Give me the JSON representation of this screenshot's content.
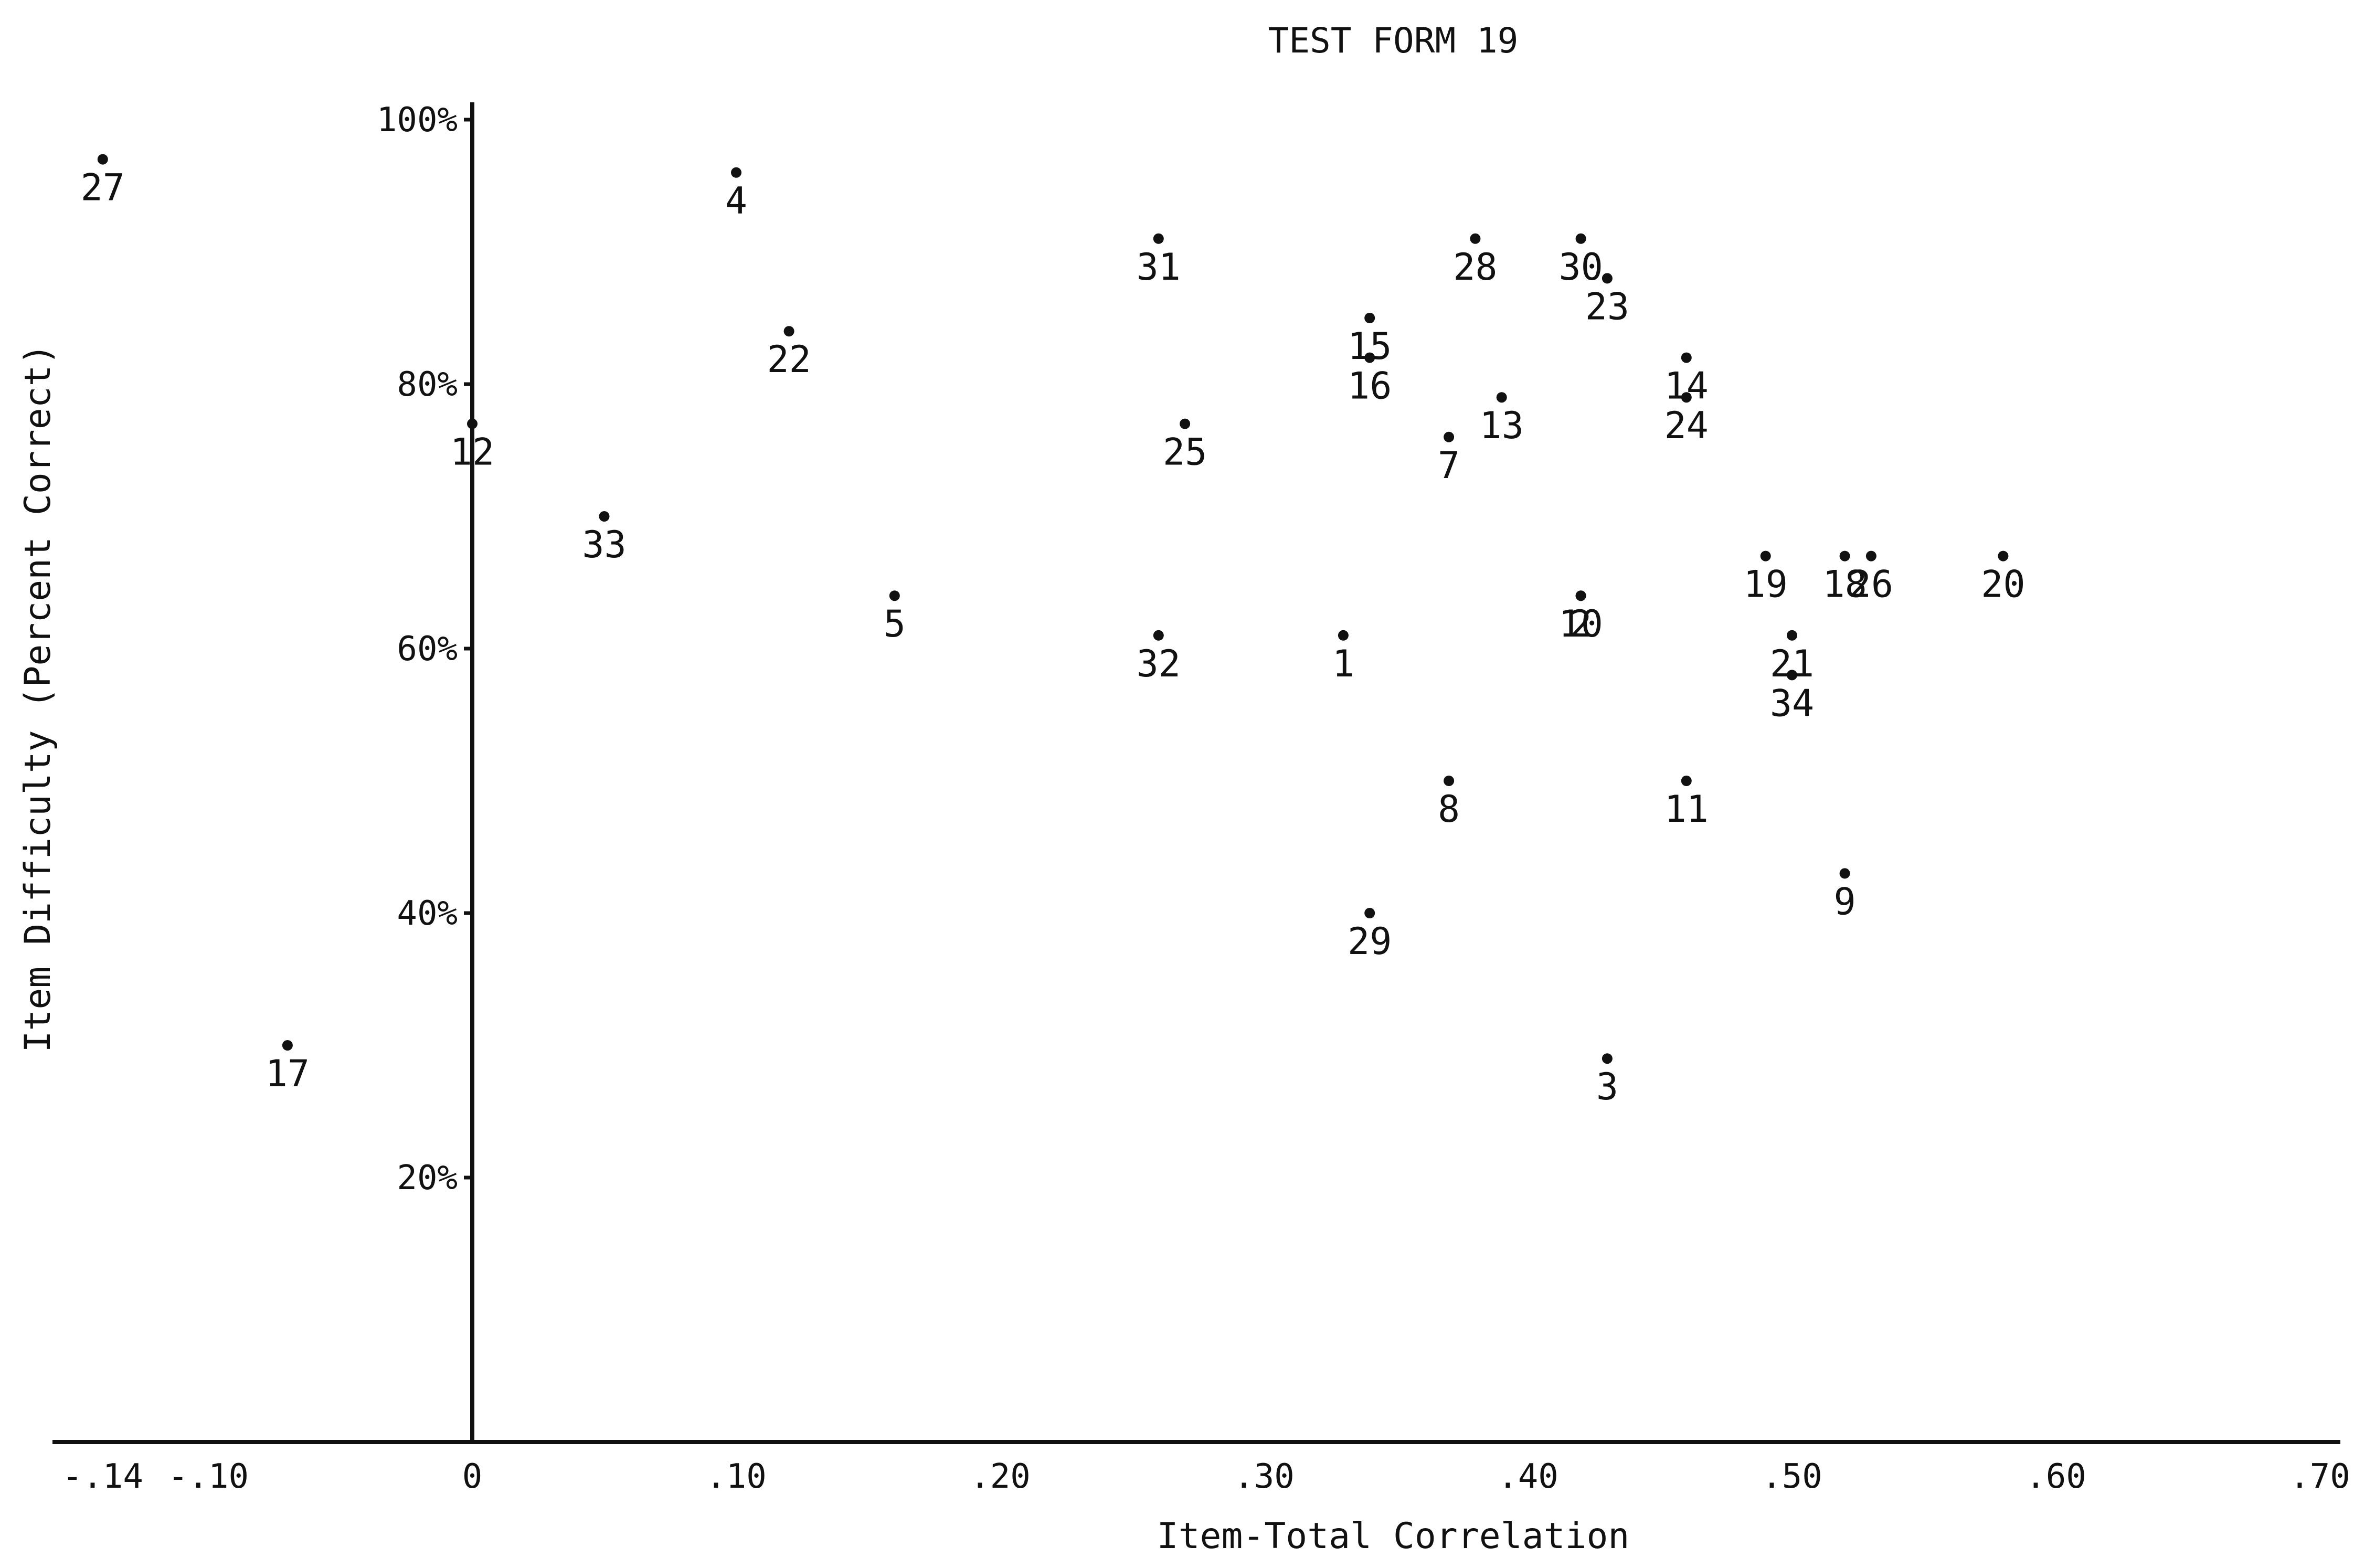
{
  "chart_data": {
    "type": "scatter",
    "title": "TEST FORM 19",
    "xlabel": "Item-Total Correlation",
    "ylabel": "Item Difficulty (Percent Correct)",
    "xlim": [
      -0.16,
      0.7
    ],
    "ylim": [
      0,
      100
    ],
    "grid": false,
    "x_ticks": [
      {
        "value": -0.14,
        "label": "-.14"
      },
      {
        "value": -0.1,
        "label": "-.10"
      },
      {
        "value": 0,
        "label": "0"
      },
      {
        "value": 0.1,
        "label": ".10"
      },
      {
        "value": 0.2,
        "label": ".20"
      },
      {
        "value": 0.3,
        "label": ".30"
      },
      {
        "value": 0.4,
        "label": ".40"
      },
      {
        "value": 0.5,
        "label": ".50"
      },
      {
        "value": 0.6,
        "label": ".60"
      },
      {
        "value": 0.7,
        "label": ".70"
      }
    ],
    "y_ticks": [
      {
        "value": 20,
        "label": "20%"
      },
      {
        "value": 40,
        "label": "40%"
      },
      {
        "value": 60,
        "label": "60%"
      },
      {
        "value": 80,
        "label": "80%"
      },
      {
        "value": 100,
        "label": "100%"
      }
    ],
    "points": [
      {
        "label": "1",
        "x": 0.33,
        "y": 61
      },
      {
        "label": "2",
        "x": 0.42,
        "y": 64
      },
      {
        "label": "3",
        "x": 0.43,
        "y": 29
      },
      {
        "label": "4",
        "x": 0.1,
        "y": 96
      },
      {
        "label": "5",
        "x": 0.16,
        "y": 64
      },
      {
        "label": "7",
        "x": 0.37,
        "y": 76
      },
      {
        "label": "8",
        "x": 0.37,
        "y": 50
      },
      {
        "label": "9",
        "x": 0.52,
        "y": 43
      },
      {
        "label": "10",
        "x": 0.42,
        "y": 64
      },
      {
        "label": "11",
        "x": 0.46,
        "y": 50
      },
      {
        "label": "12",
        "x": 0.0,
        "y": 77
      },
      {
        "label": "13",
        "x": 0.39,
        "y": 79
      },
      {
        "label": "14",
        "x": 0.46,
        "y": 82
      },
      {
        "label": "15",
        "x": 0.34,
        "y": 85
      },
      {
        "label": "16",
        "x": 0.34,
        "y": 82
      },
      {
        "label": "17",
        "x": -0.07,
        "y": 30
      },
      {
        "label": "18",
        "x": 0.52,
        "y": 67
      },
      {
        "label": "19",
        "x": 0.49,
        "y": 67
      },
      {
        "label": "20",
        "x": 0.58,
        "y": 67
      },
      {
        "label": "21",
        "x": 0.5,
        "y": 61
      },
      {
        "label": "22",
        "x": 0.12,
        "y": 84
      },
      {
        "label": "23",
        "x": 0.43,
        "y": 88
      },
      {
        "label": "24",
        "x": 0.46,
        "y": 79
      },
      {
        "label": "25",
        "x": 0.27,
        "y": 77
      },
      {
        "label": "26",
        "x": 0.53,
        "y": 67
      },
      {
        "label": "27",
        "x": -0.14,
        "y": 97
      },
      {
        "label": "28",
        "x": 0.38,
        "y": 91
      },
      {
        "label": "29",
        "x": 0.34,
        "y": 40
      },
      {
        "label": "30",
        "x": 0.42,
        "y": 91
      },
      {
        "label": "31",
        "x": 0.26,
        "y": 91
      },
      {
        "label": "32",
        "x": 0.26,
        "y": 61
      },
      {
        "label": "33",
        "x": 0.05,
        "y": 70
      },
      {
        "label": "34",
        "x": 0.5,
        "y": 58
      }
    ]
  }
}
